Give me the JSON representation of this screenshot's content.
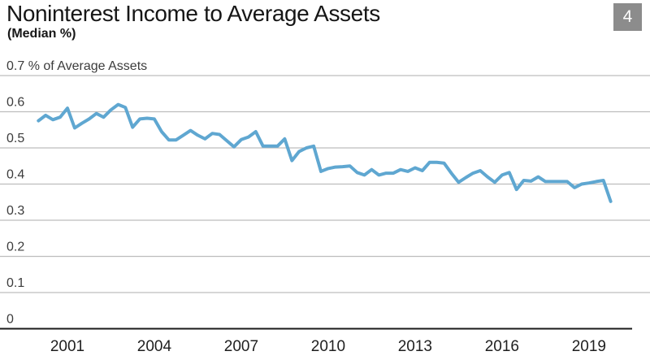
{
  "header": {
    "title": "Noninterest Income to Average Assets",
    "subtitle": "(Median %)",
    "slide_number": "4"
  },
  "chart_data": {
    "type": "line",
    "title": "Noninterest Income to Average Assets",
    "subtitle": "(Median %)",
    "legend": "none",
    "grid": "horizontal",
    "y_axis": {
      "labels": [
        "0.7 % of Average Assets",
        "0.6",
        "0.5",
        "0.4",
        "0.3",
        "0.2",
        "0.1",
        "0"
      ],
      "values": [
        0.7,
        0.6,
        0.5,
        0.4,
        0.3,
        0.2,
        0.1,
        0
      ],
      "range": [
        0,
        0.7
      ]
    },
    "x_axis": {
      "ticks": [
        "2001",
        "2004",
        "2007",
        "2010",
        "2013",
        "2016",
        "2019"
      ],
      "tick_years": [
        2001,
        2004,
        2007,
        2010,
        2013,
        2016,
        2019
      ],
      "range_years": [
        2000,
        2019.75
      ]
    },
    "series": [
      {
        "name": "Noninterest income to average assets, median %",
        "frequency": "quarterly",
        "start_year": 2000,
        "start_quarter": 1,
        "values": [
          0.575,
          0.59,
          0.578,
          0.585,
          0.61,
          0.555,
          0.568,
          0.58,
          0.595,
          0.585,
          0.605,
          0.62,
          0.612,
          0.557,
          0.58,
          0.582,
          0.58,
          0.545,
          0.522,
          0.522,
          0.535,
          0.548,
          0.535,
          0.525,
          0.54,
          0.537,
          0.52,
          0.503,
          0.523,
          0.53,
          0.545,
          0.505,
          0.505,
          0.505,
          0.525,
          0.465,
          0.49,
          0.5,
          0.505,
          0.435,
          0.443,
          0.447,
          0.448,
          0.45,
          0.432,
          0.425,
          0.44,
          0.425,
          0.43,
          0.43,
          0.44,
          0.435,
          0.445,
          0.437,
          0.46,
          0.46,
          0.458,
          0.43,
          0.405,
          0.418,
          0.43,
          0.437,
          0.42,
          0.405,
          0.425,
          0.432,
          0.385,
          0.41,
          0.408,
          0.42,
          0.407,
          0.407,
          0.407,
          0.407,
          0.39,
          0.4,
          0.403,
          0.407,
          0.41,
          0.352
        ]
      }
    ],
    "colors": {
      "line": "#5FA7D1",
      "gridline": "#BDBDBD",
      "baseline": "#1A1A1A",
      "tick_text": "#3C3C3C",
      "title_text": "#161616",
      "badge_bg": "#8C8C8C",
      "badge_text": "#FFFFFF"
    }
  }
}
